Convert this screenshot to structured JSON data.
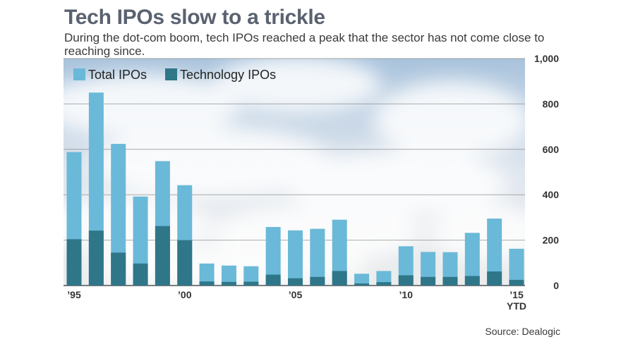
{
  "header": {
    "title": "Tech IPOs slow to a trickle",
    "subtitle": "During the dot-com boom, tech IPOs reached a peak that the sector has not come close to reaching since."
  },
  "source": "Source: Dealogic",
  "colors": {
    "total": "#6ab9d8",
    "tech": "#2f7689",
    "grid": "#8a8a8a"
  },
  "chart_data": {
    "type": "bar",
    "title": "",
    "xlabel": "",
    "ylabel": "",
    "ylim": [
      0,
      1000
    ],
    "yticks": [
      0,
      200,
      400,
      600,
      800,
      1000
    ],
    "ytick_labels": [
      "0",
      "200",
      "400",
      "600",
      "800",
      "1,000"
    ],
    "grid": true,
    "legend_position": "top-left",
    "categories": [
      "1995",
      "1996",
      "1997",
      "1998",
      "1999",
      "2000",
      "2001",
      "2002",
      "2003",
      "2004",
      "2005",
      "2006",
      "2007",
      "2008",
      "2009",
      "2010",
      "2011",
      "2012",
      "2013",
      "2014",
      "2015 YTD"
    ],
    "xtick_labels": [
      {
        "index": 0,
        "text": "’95",
        "sub": ""
      },
      {
        "index": 5,
        "text": "’00",
        "sub": ""
      },
      {
        "index": 10,
        "text": "’05",
        "sub": ""
      },
      {
        "index": 15,
        "text": "’10",
        "sub": ""
      },
      {
        "index": 20,
        "text": "’15",
        "sub": "YTD"
      }
    ],
    "series": [
      {
        "name": "Total IPOs",
        "values": [
          588,
          850,
          624,
          392,
          548,
          442,
          97,
          88,
          85,
          258,
          243,
          250,
          290,
          52,
          64,
          173,
          148,
          147,
          232,
          295,
          162
        ]
      },
      {
        "name": "Technology IPOs",
        "values": [
          204,
          242,
          145,
          97,
          262,
          200,
          18,
          16,
          17,
          48,
          32,
          38,
          64,
          9,
          15,
          45,
          38,
          38,
          42,
          62,
          25
        ]
      }
    ]
  }
}
